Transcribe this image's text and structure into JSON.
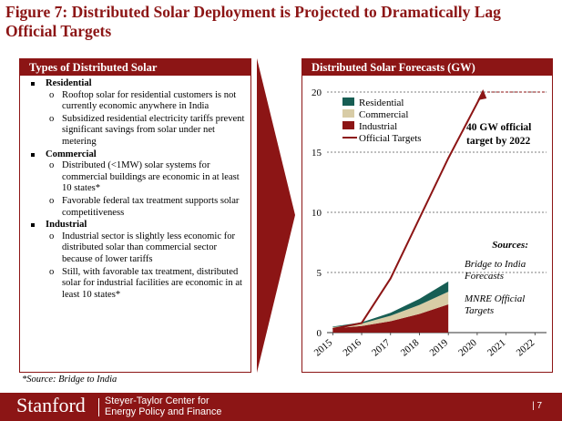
{
  "title": "Figure 7: Distributed Solar Deployment is Projected to Dramatically Lag Official Targets",
  "left_panel": {
    "header": "Types of Distributed Solar",
    "sections": [
      {
        "heading": "Residential",
        "items": [
          "Rooftop solar for residential customers is not currently economic anywhere in India",
          "Subsidized residential electricity tariffs  prevent significant savings from solar under net metering"
        ]
      },
      {
        "heading": "Commercial",
        "items": [
          "Distributed (<1MW) solar systems for commercial buildings are economic in at least 10 states*",
          "Favorable federal tax treatment supports solar competitiveness"
        ]
      },
      {
        "heading": "Industrial",
        "items": [
          "Industrial sector is slightly less economic for distributed solar than commercial sector because of lower tariffs",
          "Still, with favorable tax treatment, distributed solar for industrial facilities are economic in at least 10 states*"
        ]
      }
    ]
  },
  "source_note": "*Source: Bridge to India",
  "right_panel": {
    "header": "Distributed Solar Forecasts (GW)"
  },
  "chart_data": {
    "type": "area",
    "x": [
      2015,
      2016,
      2017,
      2018,
      2019
    ],
    "categories": [
      "2015",
      "2016",
      "2017",
      "2018",
      "2019",
      "2020",
      "2021",
      "2022"
    ],
    "series": [
      {
        "name": "Industrial",
        "values": [
          0.35,
          0.55,
          0.95,
          1.55,
          2.35
        ],
        "color": "#8c1515"
      },
      {
        "name": "Commercial",
        "values": [
          0.1,
          0.2,
          0.45,
          0.75,
          1.05
        ],
        "color": "#d8cca6"
      },
      {
        "name": "Residential",
        "values": [
          0.05,
          0.1,
          0.25,
          0.5,
          0.85
        ],
        "color": "#175e54"
      }
    ],
    "target_line": {
      "name": "Official Targets",
      "x": [
        2015,
        2016,
        2017,
        2018,
        2019,
        2020.2
      ],
      "values": [
        0.3,
        0.8,
        4.5,
        9.5,
        14.5,
        20
      ],
      "color": "#8c1515"
    },
    "ylim": [
      0,
      20
    ],
    "yticks": [
      0,
      5,
      10,
      15,
      20
    ],
    "xlim": [
      2014.8,
      2022.4
    ],
    "target_level": 20,
    "legend_order": [
      "Residential",
      "Commercial",
      "Industrial",
      "Official Targets"
    ],
    "legend_position": "top-left",
    "annotation": "40 GW official target by 2022",
    "sources_heading": "Sources:",
    "sources": [
      "Bridge to India Forecasts",
      "MNRE Official Targets"
    ]
  },
  "footer": {
    "brand": "Stanford",
    "center_line1": "Steyer-Taylor Center for",
    "center_line2": "Energy Policy and Finance",
    "page": "| 7"
  },
  "colors": {
    "accent": "#8c1515"
  }
}
